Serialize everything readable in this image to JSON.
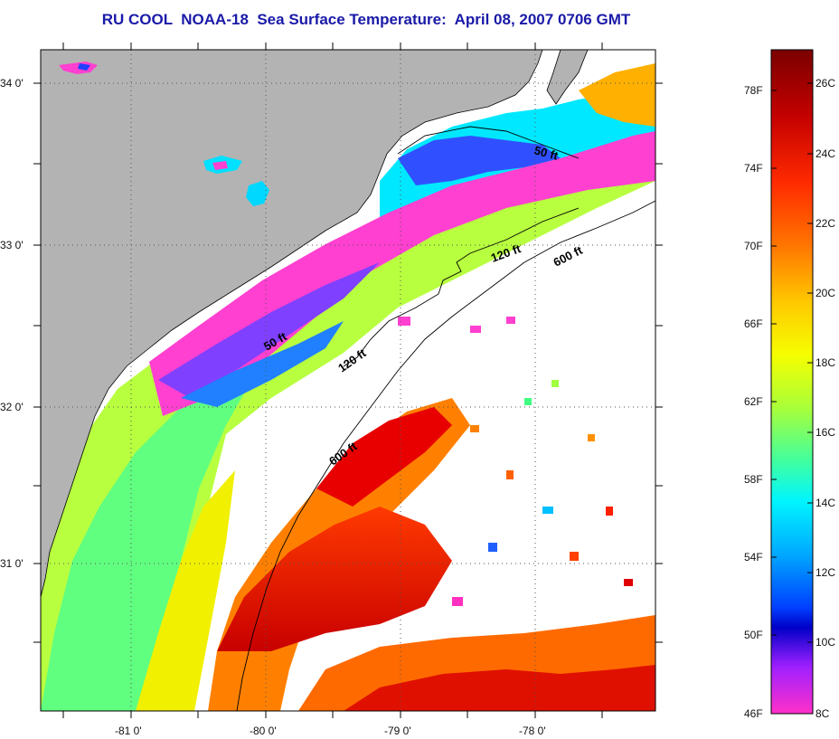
{
  "title": "RU COOL  NOAA-18  Sea Surface Temperature:  April 08, 2007 0706 GMT",
  "map": {
    "lat_labels": [
      "34 0'",
      "33 0'",
      "32 0'",
      "31 0'"
    ],
    "lon_labels": [
      "-81 0'",
      "-80 0'",
      "-79 0'",
      "-78 0'"
    ],
    "contour_labels": [
      "50 ft",
      "120 ft",
      "600 ft",
      "50 ft",
      "120 ft",
      "600 ft"
    ],
    "land_color": "#b3b3b3",
    "no_data_color": "#ffffff"
  },
  "colorbar": {
    "fahrenheit_labels": [
      "78F",
      "74F",
      "70F",
      "66F",
      "62F",
      "58F",
      "54F",
      "50F",
      "46F"
    ],
    "celsius_labels": [
      "26C",
      "24C",
      "22C",
      "20C",
      "18C",
      "16C",
      "14C",
      "12C",
      "10C",
      "8C"
    ],
    "colors_top_to_bottom": [
      "#7a0000",
      "#c40000",
      "#ff2a00",
      "#ff7a00",
      "#ffc800",
      "#f5ff00",
      "#a8ff3a",
      "#40ffa0",
      "#00f5ff",
      "#00a8ff",
      "#0040ff",
      "#0000c8",
      "#a020ff",
      "#ff30c8"
    ]
  }
}
